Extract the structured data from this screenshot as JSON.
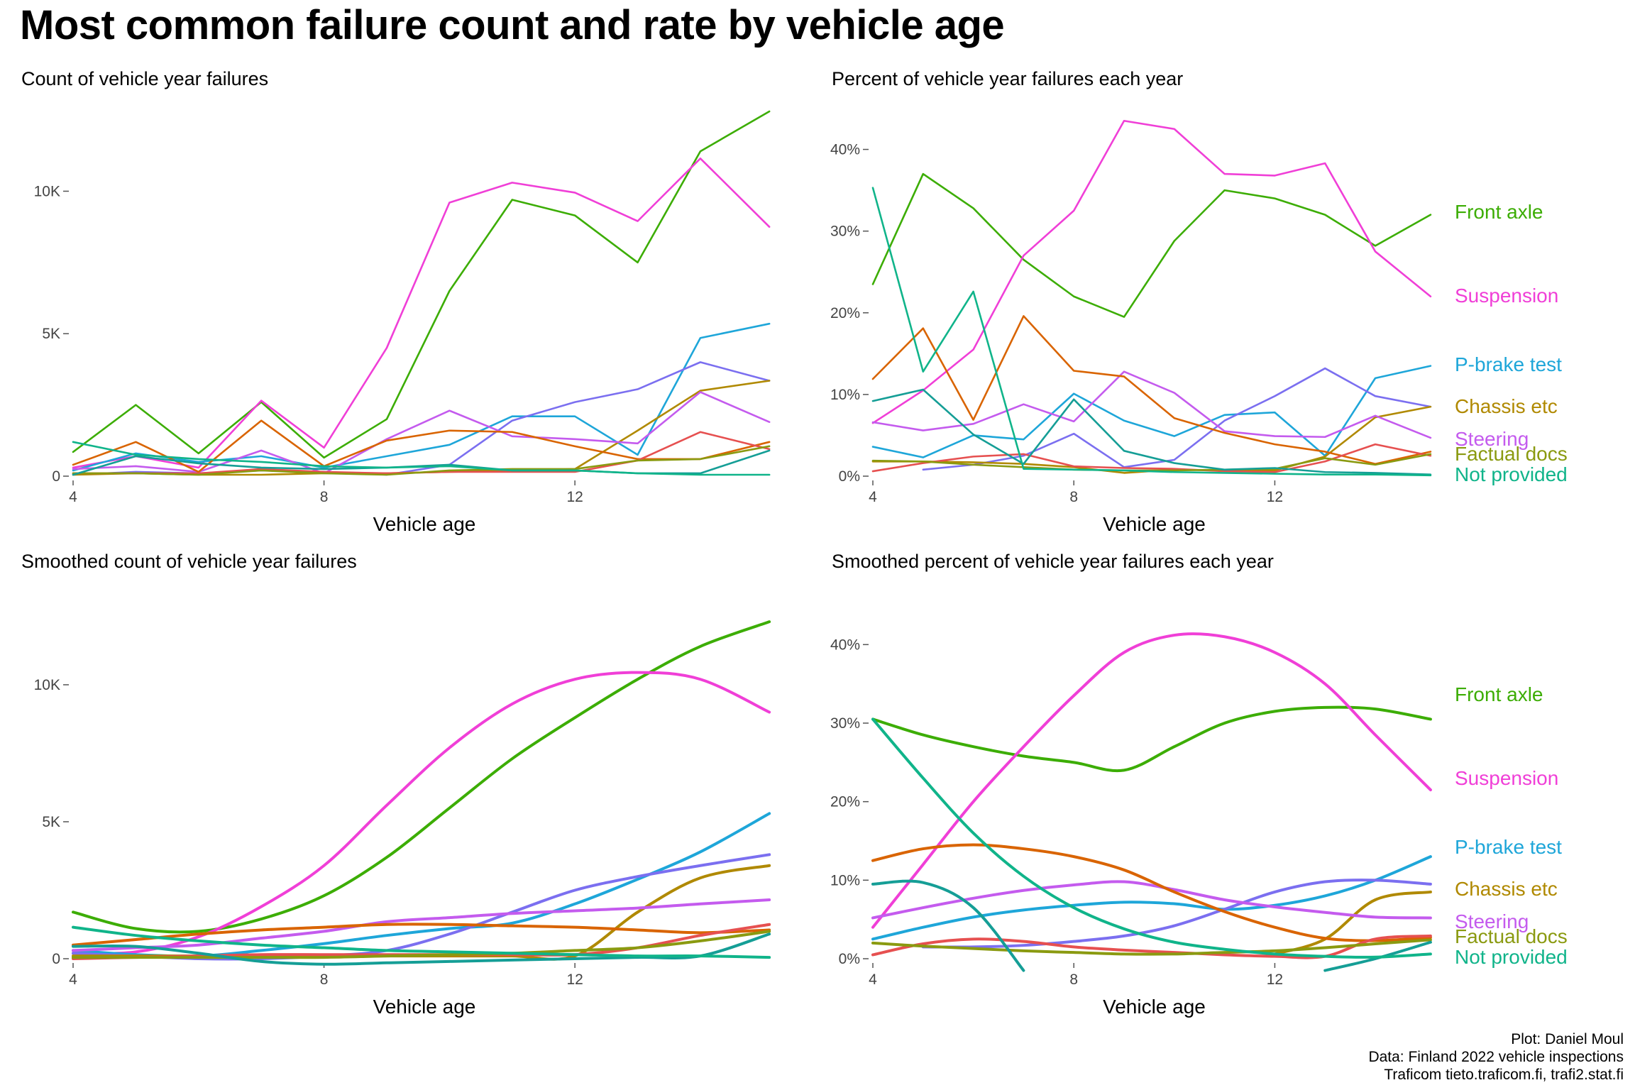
{
  "title": "Most common failure count and rate by vehicle age",
  "caption": {
    "line1": "Plot: Daniel Moul",
    "line2": "Data: Finland 2022 vehicle inspections",
    "line3": "Traficom tieto.traficom.fi, trafi2.stat.fi"
  },
  "colors": {
    "Front axle": "#3CAD04",
    "Suspension": "#F03FD7",
    "P-brake test": "#1EA6D9",
    "Chassis etc": "#B08900",
    "Steering": "#C45BEE",
    "Factual docs": "#8A9A10",
    "Not provided": "#10B48A",
    "series_a": "#D96400",
    "series_b": "#E65050",
    "series_c": "#7B6FF0",
    "series_d": "#159E96"
  },
  "chart_data": [
    {
      "type": "line",
      "subtitle": "Count of vehicle year failures",
      "xlabel": "Vehicle age",
      "xlim": [
        4,
        15.2
      ],
      "ylim": [
        0,
        12900
      ],
      "xticks": [
        4,
        8,
        12
      ],
      "xtick_labels": [
        "4",
        "8",
        "12"
      ],
      "yticks": [
        0,
        5000,
        10000
      ],
      "ytick_labels": [
        "0",
        "5K",
        "10K"
      ],
      "x": [
        4,
        5,
        6,
        7,
        8,
        9,
        10,
        11,
        12,
        13,
        14,
        15.1
      ],
      "series": [
        {
          "color_key": "Front axle",
          "values": [
            850,
            2500,
            800,
            2600,
            650,
            2000,
            6500,
            9700,
            9150,
            7500,
            11400,
            12800
          ]
        },
        {
          "color_key": "Suspension",
          "values": [
            300,
            700,
            300,
            2650,
            1000,
            4500,
            9600,
            10300,
            9950,
            8950,
            11150,
            8750
          ]
        },
        {
          "color_key": "P-brake test",
          "values": [
            200,
            800,
            500,
            700,
            300,
            700,
            1100,
            2100,
            2100,
            750,
            4850,
            5350
          ]
        },
        {
          "color_key": "series_c",
          "values": [
            50,
            150,
            100,
            200,
            150,
            50,
            400,
            1950,
            2600,
            3050,
            4000,
            3350
          ]
        },
        {
          "color_key": "Chassis etc",
          "values": [
            50,
            100,
            50,
            50,
            100,
            100,
            150,
            200,
            250,
            1600,
            3000,
            3350
          ]
        },
        {
          "color_key": "Steering",
          "values": [
            250,
            350,
            150,
            900,
            100,
            1300,
            2300,
            1400,
            1300,
            1150,
            2950,
            1900
          ]
        },
        {
          "color_key": "series_a",
          "values": [
            400,
            1200,
            150,
            1950,
            350,
            1250,
            1600,
            1550,
            1050,
            600,
            600,
            1200
          ]
        },
        {
          "color_key": "series_b",
          "values": [
            100,
            100,
            100,
            250,
            150,
            100,
            150,
            150,
            150,
            550,
            1550,
            950
          ]
        },
        {
          "color_key": "Factual docs",
          "values": [
            100,
            100,
            50,
            200,
            100,
            50,
            200,
            250,
            250,
            550,
            600,
            1050
          ]
        },
        {
          "color_key": "series_d",
          "values": [
            50,
            700,
            450,
            300,
            250,
            300,
            400,
            200,
            200,
            100,
            100,
            900
          ]
        },
        {
          "color_key": "Not provided",
          "values": [
            1200,
            750,
            600,
            500,
            350,
            300,
            350,
            200,
            200,
            100,
            50,
            50
          ]
        }
      ]
    },
    {
      "type": "line",
      "subtitle": "Percent of vehicle year failures each year",
      "xlabel": "Vehicle age",
      "xlim": [
        4,
        15.2
      ],
      "ylim": [
        0,
        45
      ],
      "xticks": [
        4,
        8,
        12
      ],
      "xtick_labels": [
        "4",
        "8",
        "12"
      ],
      "yticks": [
        0,
        10,
        20,
        30,
        40
      ],
      "ytick_labels": [
        "0%",
        "10%",
        "20%",
        "30%",
        "40%"
      ],
      "x": [
        4,
        5,
        6,
        7,
        8,
        9,
        10,
        11,
        12,
        13,
        14,
        15.1
      ],
      "series": [
        {
          "color_key": "Front axle",
          "values": [
            23.5,
            37,
            32.8,
            26.5,
            22,
            19.5,
            28.8,
            35,
            34,
            32,
            28.2,
            32
          ]
        },
        {
          "color_key": "Suspension",
          "values": [
            6.5,
            10.5,
            15.5,
            27,
            32.5,
            43.5,
            42.5,
            37,
            36.8,
            38.3,
            27.5,
            22
          ]
        },
        {
          "color_key": "P-brake test",
          "values": [
            3.6,
            2.3,
            5,
            4.5,
            10.1,
            6.8,
            4.9,
            7.5,
            7.8,
            2.5,
            12,
            13.5
          ]
        },
        {
          "color_key": "series_c",
          "values": [
            null,
            0.8,
            1.4,
            2.5,
            5.2,
            1.1,
            2,
            6.8,
            9.8,
            13.2,
            9.8,
            8.5
          ]
        },
        {
          "color_key": "Chassis etc",
          "values": [
            1.8,
            1.8,
            1.7,
            1.5,
            1.1,
            0.4,
            0.8,
            0.7,
            0.7,
            2.4,
            7.2,
            8.5
          ]
        },
        {
          "color_key": "Steering",
          "values": [
            6.6,
            5.6,
            6.4,
            8.8,
            6.7,
            12.8,
            10.2,
            5.5,
            4.9,
            4.8,
            7.4,
            4.7
          ]
        },
        {
          "color_key": "series_a",
          "values": [
            11.9,
            18.1,
            6.9,
            19.6,
            12.9,
            12.2,
            7.1,
            5.3,
            3.9,
            3,
            1.5,
            3
          ]
        },
        {
          "color_key": "series_b",
          "values": [
            0.6,
            1.6,
            2.4,
            2.7,
            1.2,
            1,
            0.9,
            0.6,
            0.5,
            1.8,
            3.9,
            2.5
          ]
        },
        {
          "color_key": "Factual docs",
          "values": [
            1.9,
            1.8,
            1.4,
            1.1,
            0.8,
            0.7,
            0.7,
            0.8,
            0.9,
            2.2,
            1.4,
            2.7
          ]
        },
        {
          "color_key": "series_d",
          "values": [
            9.2,
            10.6,
            5.1,
            1.5,
            9.4,
            3.1,
            1.6,
            0.8,
            1,
            0.5,
            0.4,
            0.2
          ]
        },
        {
          "color_key": "Not provided",
          "values": [
            35.3,
            12.8,
            22.6,
            0.9,
            0.8,
            0.7,
            0.5,
            0.4,
            0.3,
            0.2,
            0.2,
            0.1
          ]
        }
      ]
    },
    {
      "type": "line",
      "subtitle": "Smoothed count of vehicle year failures",
      "xlabel": "Vehicle age",
      "xlim": [
        4,
        15.2
      ],
      "ylim": [
        0,
        12900
      ],
      "xticks": [
        4,
        8,
        12
      ],
      "xtick_labels": [
        "4",
        "8",
        "12"
      ],
      "yticks": [
        0,
        5000,
        10000
      ],
      "ytick_labels": [
        "0",
        "5K",
        "10K"
      ],
      "x": [
        4,
        5,
        6,
        7,
        8,
        9,
        10,
        11,
        12,
        13,
        14,
        15.1
      ],
      "series": [
        {
          "color_key": "Front axle",
          "values": [
            1700,
            1100,
            1000,
            1450,
            2300,
            3700,
            5500,
            7300,
            8800,
            10200,
            11400,
            12300
          ]
        },
        {
          "color_key": "Suspension",
          "values": [
            200,
            250,
            800,
            1900,
            3400,
            5600,
            7700,
            9300,
            10200,
            10450,
            10200,
            9000
          ]
        },
        {
          "color_key": "P-brake test",
          "values": [
            300,
            150,
            100,
            300,
            550,
            850,
            1100,
            1300,
            2000,
            2900,
            3900,
            5300
          ]
        },
        {
          "color_key": "series_c",
          "values": [
            200,
            100,
            0,
            0,
            100,
            300,
            900,
            1700,
            2500,
            3000,
            3400,
            3800
          ]
        },
        {
          "color_key": "Chassis etc",
          "values": [
            100,
            100,
            100,
            100,
            100,
            100,
            100,
            100,
            100,
            1700,
            2950,
            3400
          ]
        },
        {
          "color_key": "Steering",
          "values": [
            300,
            400,
            500,
            750,
            1000,
            1350,
            1500,
            1650,
            1750,
            1850,
            2000,
            2150
          ]
        },
        {
          "color_key": "series_a",
          "values": [
            500,
            700,
            900,
            1050,
            1150,
            1250,
            1250,
            1200,
            1150,
            1050,
            950,
            1050
          ]
        },
        {
          "color_key": "series_b",
          "values": [
            0,
            50,
            100,
            150,
            150,
            150,
            150,
            150,
            150,
            400,
            850,
            1250
          ]
        },
        {
          "color_key": "Factual docs",
          "values": [
            50,
            50,
            50,
            50,
            50,
            100,
            150,
            200,
            300,
            400,
            650,
            1000
          ]
        },
        {
          "color_key": "series_d",
          "values": [
            450,
            450,
            200,
            -100,
            -200,
            -150,
            -100,
            -50,
            0,
            50,
            100,
            900
          ]
        },
        {
          "color_key": "Not provided",
          "values": [
            1150,
            850,
            650,
            500,
            400,
            300,
            250,
            200,
            150,
            100,
            100,
            50
          ]
        }
      ]
    },
    {
      "type": "line",
      "subtitle": "Smoothed percent of vehicle year failures each year",
      "xlabel": "Vehicle age",
      "xlim": [
        4,
        15.2
      ],
      "ylim": [
        0,
        45
      ],
      "xticks": [
        4,
        8,
        12
      ],
      "xtick_labels": [
        "4",
        "8",
        "12"
      ],
      "yticks": [
        0,
        10,
        20,
        30,
        40
      ],
      "ytick_labels": [
        "0%",
        "10%",
        "20%",
        "30%",
        "40%"
      ],
      "x": [
        4,
        5,
        6,
        7,
        8,
        9,
        10,
        11,
        12,
        13,
        14,
        15.1
      ],
      "series": [
        {
          "color_key": "Front axle",
          "values": [
            30.5,
            28.5,
            27,
            25.8,
            25,
            24,
            27,
            30,
            31.5,
            32,
            31.8,
            30.5
          ]
        },
        {
          "color_key": "Suspension",
          "values": [
            4,
            12,
            20,
            27,
            33.5,
            39,
            41.2,
            41,
            39,
            35,
            28.5,
            21.5
          ]
        },
        {
          "color_key": "P-brake test",
          "values": [
            2.5,
            4,
            5.3,
            6.2,
            6.8,
            7.2,
            7,
            6.3,
            6.8,
            8,
            10,
            13
          ]
        },
        {
          "color_key": "series_c",
          "values": [
            null,
            1.5,
            1.5,
            1.7,
            2.2,
            2.9,
            4.2,
            6.3,
            8.5,
            9.8,
            10,
            9.5
          ]
        },
        {
          "color_key": "Chassis etc",
          "values": [
            null,
            null,
            null,
            null,
            null,
            null,
            null,
            null,
            0.6,
            2.5,
            7.5,
            8.5
          ]
        },
        {
          "color_key": "Steering",
          "values": [
            5.2,
            6.5,
            7.7,
            8.7,
            9.4,
            9.8,
            8.8,
            7.5,
            6.6,
            5.9,
            5.3,
            5.2
          ]
        },
        {
          "color_key": "series_a",
          "values": [
            12.5,
            14,
            14.5,
            14,
            13,
            11.3,
            8.5,
            6,
            4,
            2.6,
            2.3,
            2.7
          ]
        },
        {
          "color_key": "series_b",
          "values": [
            0.5,
            1.9,
            2.5,
            2.2,
            1.5,
            1.1,
            0.8,
            0.5,
            0.3,
            0.3,
            2.5,
            2.9
          ]
        },
        {
          "color_key": "Factual docs",
          "values": [
            2,
            1.6,
            1.3,
            1,
            0.8,
            0.6,
            0.6,
            0.8,
            1,
            1.4,
            1.9,
            2.4
          ]
        },
        {
          "color_key": "series_d",
          "values": [
            9.5,
            9.7,
            6.5,
            -1.5,
            null,
            null,
            null,
            null,
            null,
            -1.5,
            0,
            2.1
          ]
        },
        {
          "color_key": "Not provided",
          "values": [
            30.5,
            23,
            16,
            10.5,
            6.5,
            3.8,
            2.1,
            1.2,
            0.6,
            0.3,
            0.2,
            0.6
          ]
        }
      ]
    }
  ],
  "labels": [
    {
      "text": "Front axle",
      "color_key": "Front axle",
      "value": 32
    },
    {
      "text": "Suspension",
      "color_key": "Suspension",
      "value": 22
    },
    {
      "text": "P-brake test",
      "color_key": "P-brake test",
      "value": 13.5
    },
    {
      "text": "Chassis etc",
      "color_key": "Chassis etc",
      "value": 8.5
    },
    {
      "text": "Steering",
      "color_key": "Steering",
      "value": 4.6
    },
    {
      "text": "Factual docs",
      "color_key": "Factual docs",
      "value": 2.7
    },
    {
      "text": "Not provided",
      "color_key": "Not provided",
      "value": 0.1
    }
  ],
  "labels_smoothed": [
    {
      "text": "Front axle",
      "color_key": "Front axle",
      "value": 32
    },
    {
      "text": "Suspension",
      "color_key": "Suspension",
      "value": 22
    },
    {
      "text": "P-brake test",
      "color_key": "P-brake test",
      "value": 13.5
    },
    {
      "text": "Chassis etc",
      "color_key": "Chassis etc",
      "value": 8.5
    },
    {
      "text": "Steering",
      "color_key": "Steering",
      "value": 4.6
    },
    {
      "text": "Factual docs",
      "color_key": "Factual docs",
      "value": 2.7
    },
    {
      "text": "Not provided",
      "color_key": "Not provided",
      "value": 0.1
    }
  ]
}
